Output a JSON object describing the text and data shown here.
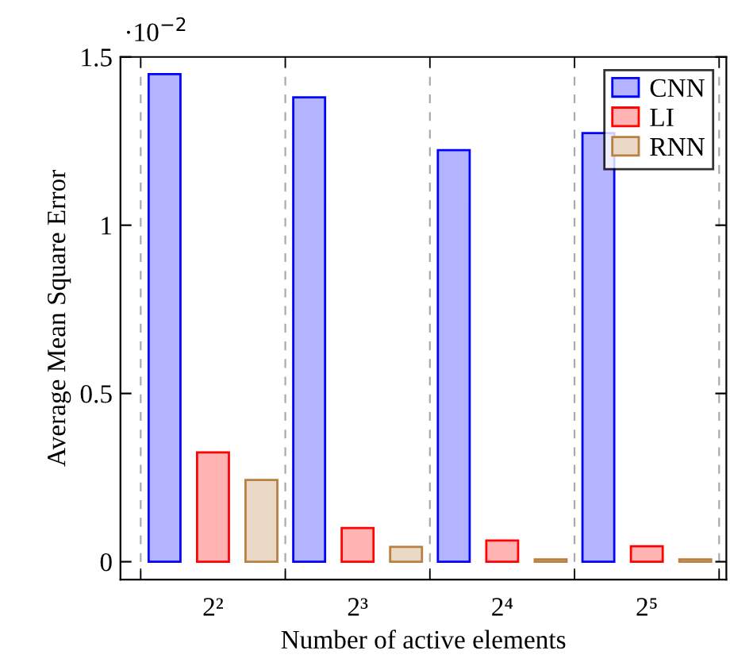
{
  "chart_data": {
    "type": "bar",
    "xlabel": "Number of active elements",
    "ylabel": "Average Mean Square Error",
    "annotations": [
      "·10$^{−2}$"
    ],
    "categories": [
      "2²",
      "2³",
      "2⁴",
      "2⁵"
    ],
    "series": [
      {
        "name": "CNN",
        "color": "#b3b3ff",
        "values": [
          1.449,
          1.38,
          1.223,
          1.274
        ]
      },
      {
        "name": "LI",
        "color": "#ffb3b3",
        "values": [
          0.325,
          0.1,
          0.063,
          0.046
        ]
      },
      {
        "name": "RNN",
        "color": "#ead9c6",
        "values": [
          0.243,
          0.044,
          0.007,
          0.007
        ]
      }
    ],
    "ylim": [
      -0.053,
      1.5
    ],
    "yticks": [
      0,
      0.5,
      1,
      1.5
    ],
    "grid": "x",
    "legend": "top right"
  }
}
